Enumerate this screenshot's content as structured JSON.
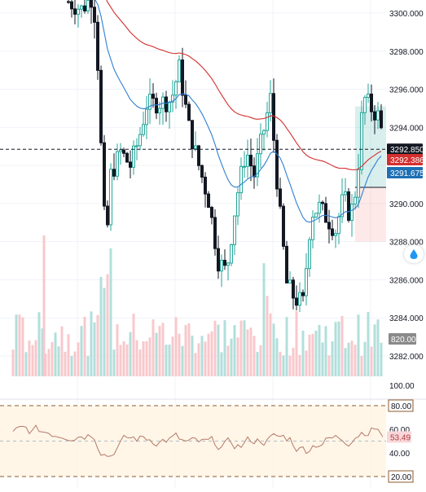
{
  "chart_data": {
    "type": "candlestick",
    "price_axis": {
      "ticks": [
        "3300.000",
        "3298.000",
        "3296.000",
        "3294.000",
        "3290.000",
        "3288.000",
        "3286.000",
        "3284.000",
        "3282.000"
      ],
      "range": [
        3281.0,
        3301.0
      ]
    },
    "price_labels": [
      {
        "label": "3292.850",
        "value": 3292.85,
        "color": "#131722"
      },
      {
        "label": "3292.386",
        "value": 3292.386,
        "color": "#d32f2f"
      },
      {
        "label": "3291.675",
        "value": 3291.675,
        "color": "#1e6fb3"
      }
    ],
    "volume_label": {
      "label": "820.00",
      "color": "#8a8a8a"
    },
    "position_zone": {
      "entry": 3290.85,
      "target_top": 3295.1,
      "stop_bottom": 3288.0
    },
    "rsi_axis": {
      "ticks": [
        "100.00",
        "80.00",
        "60.00",
        "40.00",
        "20.00"
      ],
      "current_label": "53.49",
      "range": [
        15,
        101
      ]
    },
    "colors": {
      "up": "#26a69a",
      "down": "#131722",
      "ma_slow": "#d32f2f",
      "ma_fast": "#2f7fd3",
      "rsi": "#b57968"
    },
    "icons": {
      "side_button": "drop-icon"
    }
  }
}
